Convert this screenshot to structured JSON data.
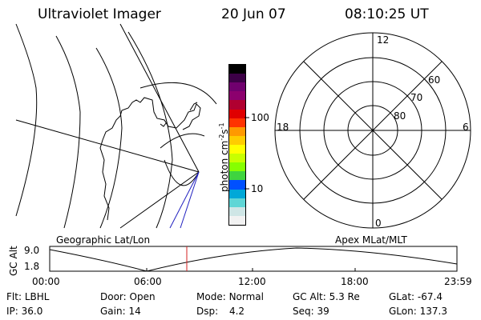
{
  "header": {
    "instrument": "Ultraviolet Imager",
    "date": "20 Jun 07",
    "time": "08:10:25 UT"
  },
  "colorbar": {
    "unit_label": "photon cm",
    "unit_exp1": "-2",
    "unit_mid": "s",
    "unit_exp2": "-1",
    "ticks": [
      {
        "label": "100",
        "value": 100
      },
      {
        "label": "10",
        "value": 10
      }
    ],
    "colors": [
      "#f2f2f2",
      "#cfe6e6",
      "#5fd6d6",
      "#00a8d8",
      "#0050ff",
      "#3fd43f",
      "#86ff00",
      "#c8ff00",
      "#ffff00",
      "#ffcc00",
      "#ff9900",
      "#ff3300",
      "#e00000",
      "#b00030",
      "#8c006e",
      "#70006e",
      "#3c0046",
      "#000000"
    ]
  },
  "polar": {
    "mlt_labels": {
      "top": "12",
      "left": "18",
      "right": "6",
      "bottom": "0"
    },
    "lat_labels": [
      "60",
      "70",
      "80"
    ]
  },
  "altitude_plot": {
    "left_label": "Geographic Lat/Lon",
    "right_label": "Apex MLat/MLT",
    "axis_label": "GC Alt",
    "y_ticks": [
      "9.0",
      "1.8"
    ],
    "x_ticks": [
      "00:00",
      "06:00",
      "12:00",
      "18:00",
      "23:59"
    ],
    "marker_color": "#d42020"
  },
  "status": {
    "row1": [
      {
        "key": "Flt:",
        "value": "LBHL"
      },
      {
        "key": "Door:",
        "value": "Open"
      },
      {
        "key": "Mode:",
        "value": "Normal"
      },
      {
        "key": "GC Alt:",
        "value": "5.3 Re"
      },
      {
        "key": "GLat:",
        "value": "-67.4"
      }
    ],
    "row2": [
      {
        "key": "IP:",
        "value": "36.0"
      },
      {
        "key": "Gain:",
        "value": "14"
      },
      {
        "key": "Dsp:",
        "value": "4.2"
      },
      {
        "key": "Seq:",
        "value": "39"
      },
      {
        "key": "GLon:",
        "value": "137.3"
      }
    ]
  }
}
